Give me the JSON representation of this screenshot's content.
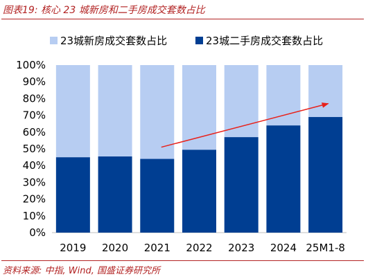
{
  "figure": {
    "title": "图表19: 核心 23 城新房和二手房成交套数占比",
    "source": "资料来源: 中指, Wind, 国盛证券研究所"
  },
  "chart_data": {
    "type": "bar",
    "stacked": true,
    "categories": [
      "2019",
      "2020",
      "2021",
      "2022",
      "2023",
      "2024",
      "25M1-8"
    ],
    "series": [
      {
        "name": "23城新房成交套数占比",
        "color": "#b7cdf2",
        "values": [
          55,
          54.5,
          56,
          50.5,
          43,
          36,
          31
        ]
      },
      {
        "name": "23城二手房成交套数占比",
        "color": "#003e92",
        "values": [
          45,
          45.5,
          44,
          49.5,
          57,
          64,
          69
        ]
      }
    ],
    "ylim": [
      0,
      100
    ],
    "yticks": [
      "0%",
      "10%",
      "20%",
      "30%",
      "40%",
      "50%",
      "60%",
      "70%",
      "80%",
      "90%",
      "100%"
    ],
    "legend_position": "top",
    "annotation": {
      "type": "arrow",
      "color": "#e8211a",
      "from": [
        "2021",
        51
      ],
      "to": [
        "25M1-8",
        77
      ]
    }
  }
}
